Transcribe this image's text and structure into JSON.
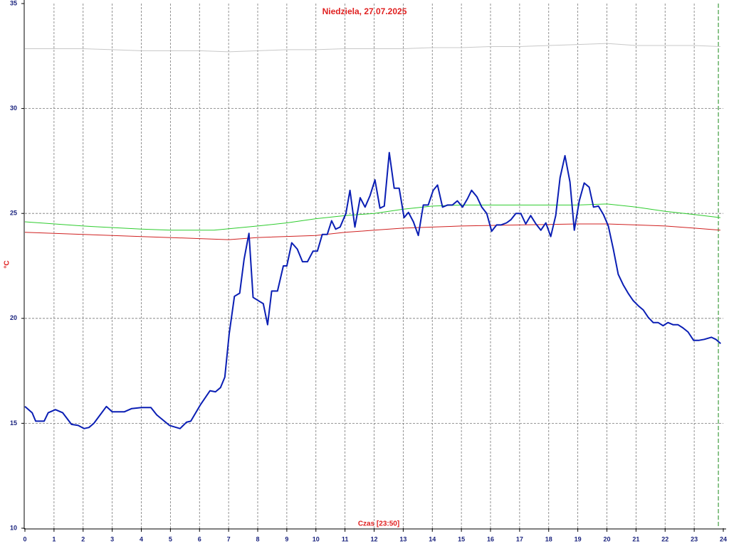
{
  "chart_data": {
    "type": "line",
    "title": "Niedziela, 27.07.2025",
    "x_label": "Czas [23:50]",
    "y_label": "°C",
    "xlim": [
      0,
      24
    ],
    "xticks": [
      0,
      1,
      2,
      3,
      4,
      5,
      6,
      7,
      8,
      9,
      10,
      11,
      12,
      13,
      14,
      15,
      16,
      17,
      18,
      19,
      20,
      21,
      22,
      23,
      24
    ],
    "ylim": [
      10,
      35
    ],
    "yticks": [
      10,
      15,
      20,
      25,
      30,
      35
    ],
    "grid": true,
    "current_time_marker": 23.83,
    "series": [
      {
        "color": "#c8c8c8",
        "width": 1,
        "x": [
          0,
          1,
          2,
          3,
          4,
          5,
          6,
          7,
          8,
          9,
          10,
          11,
          12,
          13,
          14,
          15,
          16,
          17,
          18,
          19,
          20,
          21,
          22,
          23,
          23.9
        ],
        "values": [
          32.85,
          32.85,
          32.85,
          32.8,
          32.75,
          32.75,
          32.75,
          32.7,
          32.75,
          32.8,
          32.8,
          32.85,
          32.85,
          32.85,
          32.9,
          32.9,
          32.95,
          32.95,
          33.0,
          33.05,
          33.1,
          33.0,
          33.0,
          33.0,
          32.95
        ]
      },
      {
        "color": "#2ecc2e",
        "width": 1,
        "x": [
          0,
          2,
          4,
          5,
          6.5,
          8,
          9,
          10,
          11,
          12,
          13,
          14,
          15,
          17,
          19,
          20,
          21,
          22,
          23,
          23.9
        ],
        "values": [
          24.6,
          24.4,
          24.25,
          24.2,
          24.2,
          24.4,
          24.55,
          24.75,
          24.9,
          25.0,
          25.2,
          25.35,
          25.4,
          25.4,
          25.4,
          25.45,
          25.3,
          25.1,
          24.95,
          24.8
        ]
      },
      {
        "color": "#d02020",
        "width": 1,
        "x": [
          0,
          2,
          4,
          6,
          7,
          8,
          10,
          11,
          12,
          13,
          14,
          15,
          17,
          19,
          20,
          21,
          22,
          23,
          23.9
        ],
        "values": [
          24.1,
          24.0,
          23.9,
          23.8,
          23.75,
          23.85,
          23.95,
          24.1,
          24.2,
          24.3,
          24.35,
          24.4,
          24.45,
          24.5,
          24.5,
          24.45,
          24.4,
          24.3,
          24.2
        ]
      },
      {
        "color": "#0a1eb4",
        "width": 2,
        "x": [
          0,
          0.25,
          0.37,
          0.66,
          0.8,
          1.05,
          1.3,
          1.6,
          1.83,
          2.03,
          2.2,
          2.37,
          2.8,
          3.0,
          3.42,
          3.67,
          4.0,
          4.33,
          4.53,
          4.97,
          5.33,
          5.55,
          5.7,
          6.04,
          6.36,
          6.55,
          6.72,
          6.87,
          7.02,
          7.2,
          7.38,
          7.53,
          7.7,
          7.84,
          8.07,
          8.19,
          8.34,
          8.48,
          8.68,
          8.88,
          9.0,
          9.17,
          9.36,
          9.54,
          9.71,
          9.9,
          10.05,
          10.22,
          10.39,
          10.54,
          10.68,
          10.83,
          11.03,
          11.17,
          11.34,
          11.52,
          11.69,
          11.86,
          12.03,
          12.2,
          12.35,
          12.52,
          12.69,
          12.86,
          13.03,
          13.18,
          13.35,
          13.52,
          13.69,
          13.86,
          14.03,
          14.18,
          14.35,
          14.52,
          14.69,
          14.86,
          15.04,
          15.21,
          15.35,
          15.53,
          15.7,
          15.87,
          16.04,
          16.21,
          16.36,
          16.55,
          16.7,
          16.87,
          17.04,
          17.21,
          17.38,
          17.56,
          17.73,
          17.9,
          18.07,
          18.24,
          18.39,
          18.56,
          18.73,
          18.88,
          19.05,
          19.22,
          19.39,
          19.54,
          19.71,
          19.88,
          20.05,
          20.22,
          20.39,
          20.56,
          20.73,
          20.9,
          21.08,
          21.25,
          21.42,
          21.59,
          21.76,
          21.93,
          22.1,
          22.27,
          22.44,
          22.61,
          22.79,
          22.98,
          23.15,
          23.35,
          23.59,
          23.74,
          23.91
        ],
        "values": [
          15.8,
          15.5,
          15.1,
          15.1,
          15.5,
          15.65,
          15.5,
          14.95,
          14.9,
          14.75,
          14.8,
          15.0,
          15.8,
          15.55,
          15.55,
          15.7,
          15.75,
          15.75,
          15.4,
          14.9,
          14.75,
          15.05,
          15.1,
          15.9,
          16.55,
          16.5,
          16.7,
          17.2,
          19.25,
          21.05,
          21.2,
          22.8,
          24.05,
          21.0,
          20.8,
          20.7,
          19.7,
          21.3,
          21.3,
          22.5,
          22.5,
          23.6,
          23.3,
          22.7,
          22.7,
          23.2,
          23.2,
          24.0,
          24.0,
          24.65,
          24.25,
          24.35,
          25.0,
          26.1,
          24.35,
          25.75,
          25.3,
          25.85,
          26.6,
          25.25,
          25.35,
          27.9,
          26.2,
          26.2,
          24.8,
          25.05,
          24.6,
          23.95,
          25.4,
          25.4,
          26.1,
          26.35,
          25.3,
          25.4,
          25.4,
          25.6,
          25.3,
          25.7,
          26.1,
          25.8,
          25.3,
          25.0,
          24.15,
          24.45,
          24.45,
          24.55,
          24.7,
          25.0,
          25.0,
          24.5,
          24.9,
          24.5,
          24.2,
          24.55,
          23.9,
          24.9,
          26.7,
          27.75,
          26.5,
          24.2,
          25.6,
          26.45,
          26.25,
          25.3,
          25.35,
          24.95,
          24.4,
          23.3,
          22.1,
          21.6,
          21.2,
          20.85,
          20.6,
          20.4,
          20.05,
          19.8,
          19.8,
          19.65,
          19.8,
          19.7,
          19.7,
          19.55,
          19.35,
          18.95,
          18.95,
          19.0,
          19.1,
          19.0,
          18.8
        ]
      }
    ]
  }
}
